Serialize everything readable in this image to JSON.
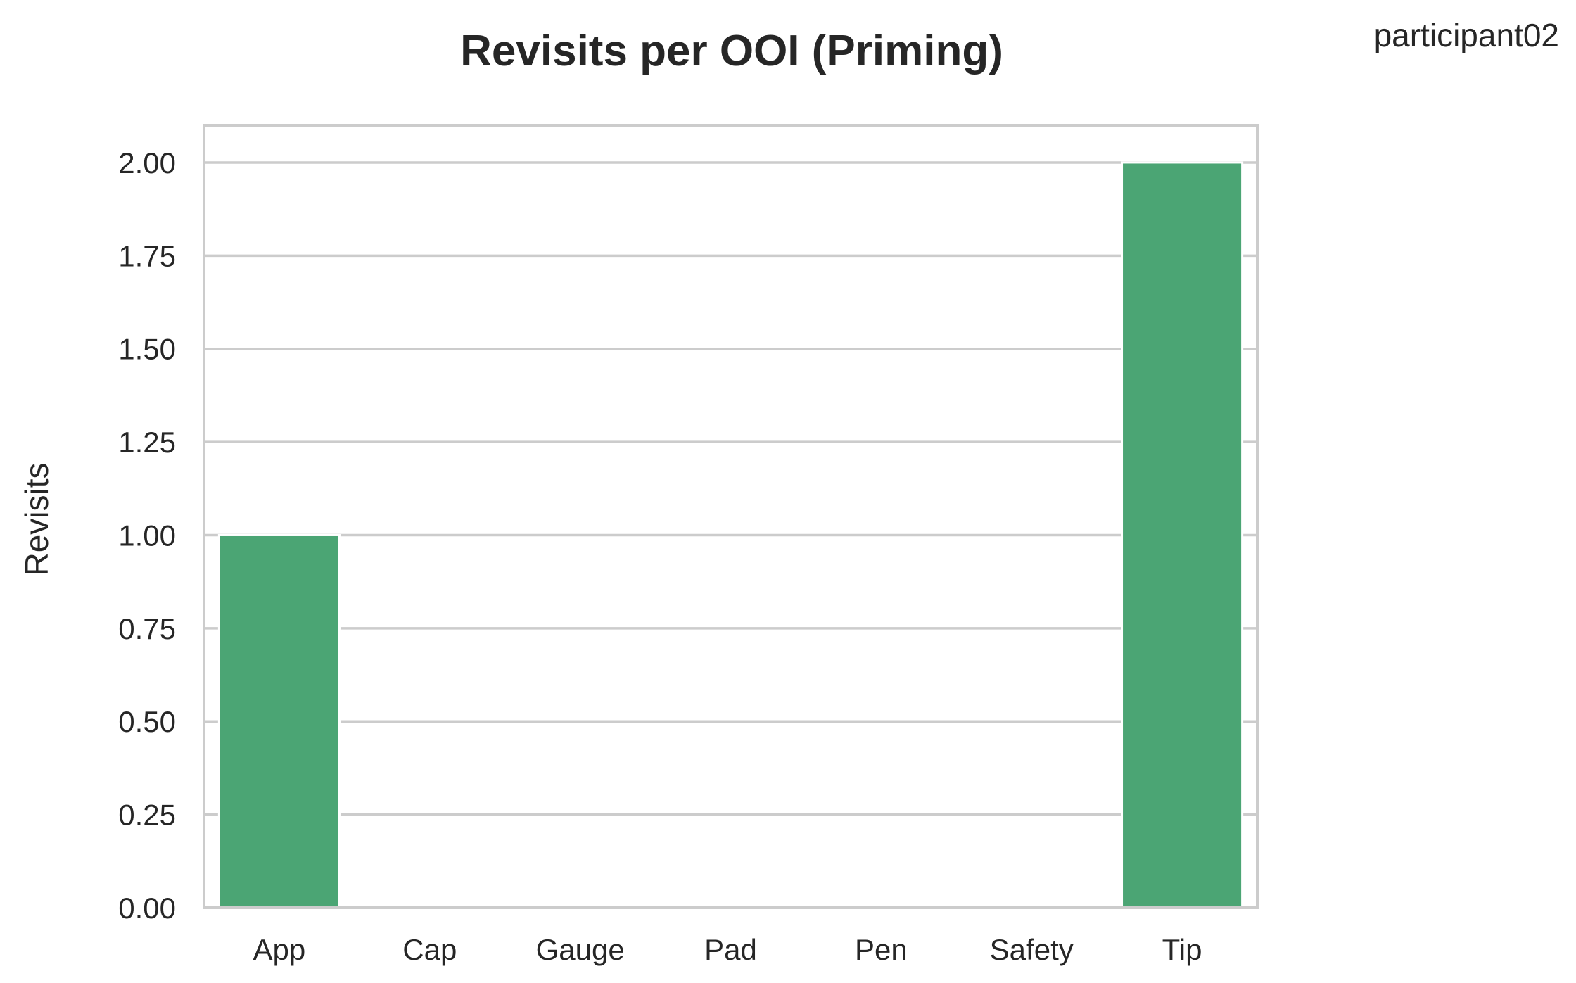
{
  "chart_data": {
    "type": "bar",
    "title": "Revisits per OOI (Priming)",
    "annotation": "participant02",
    "xlabel": "",
    "ylabel": "Revisits",
    "categories": [
      "App",
      "Cap",
      "Gauge",
      "Pad",
      "Pen",
      "Safety",
      "Tip"
    ],
    "values": [
      1,
      0,
      0,
      0,
      0,
      0,
      2
    ],
    "ylim": [
      0,
      2.1
    ],
    "yticks": [
      0,
      0.25,
      0.5,
      0.75,
      1.0,
      1.25,
      1.5,
      1.75,
      2.0
    ],
    "ytick_labels": [
      "0.00",
      "0.25",
      "0.50",
      "0.75",
      "1.00",
      "1.25",
      "1.50",
      "1.75",
      "2.00"
    ],
    "grid": true,
    "bar_color": "#4ba574",
    "grid_color": "#cccccc"
  }
}
